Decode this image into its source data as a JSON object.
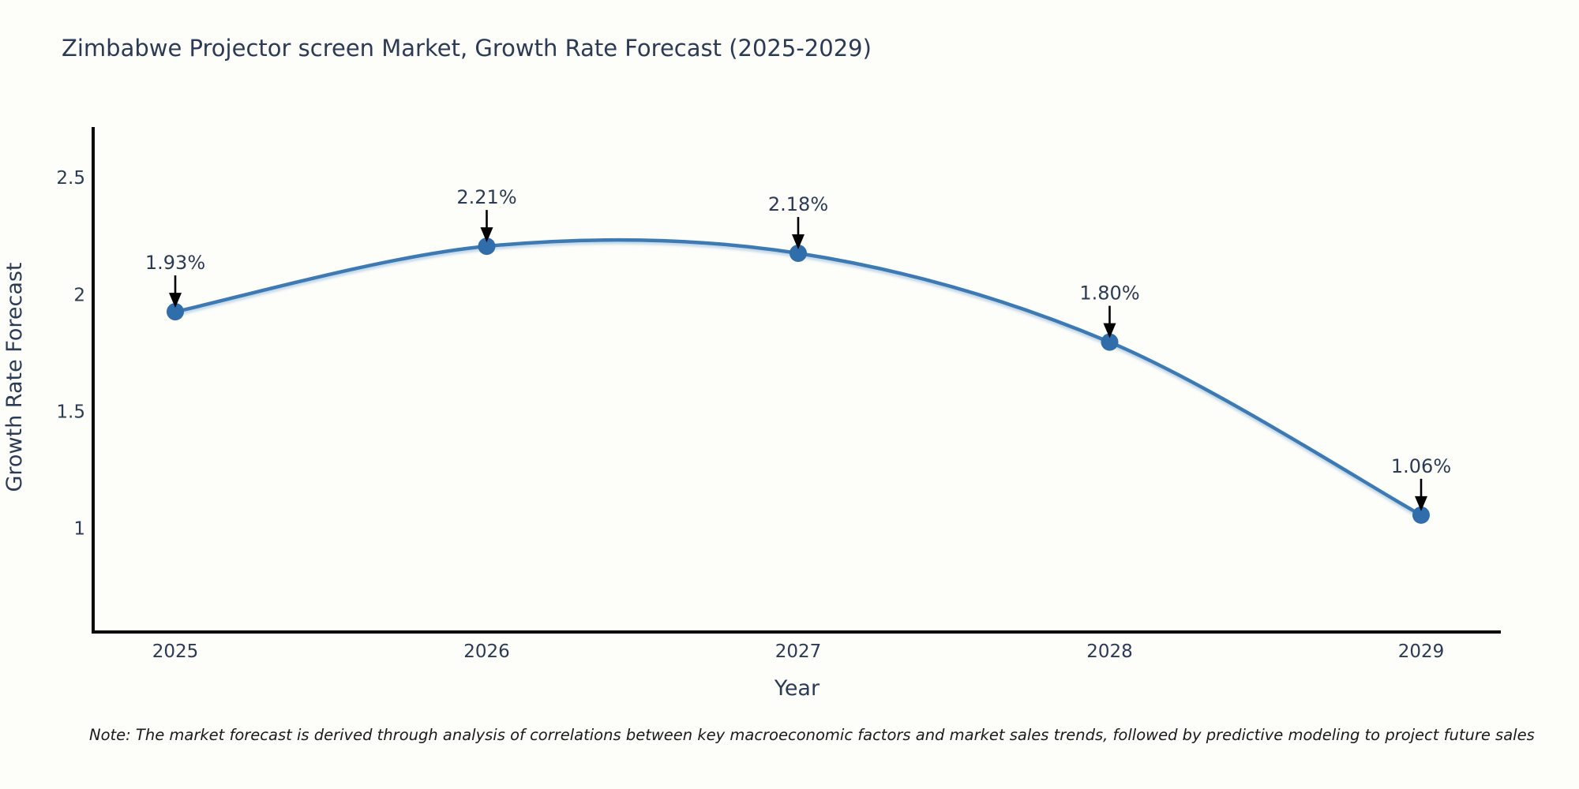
{
  "page": {
    "background": "#fdfdfa"
  },
  "chart_data": {
    "type": "line",
    "title": "Zimbabwe Projector screen Market, Growth Rate Forecast (2025-2029)",
    "xlabel": "Year",
    "ylabel": "Growth Rate Forecast",
    "categories": [
      "2025",
      "2026",
      "2027",
      "2028",
      "2029"
    ],
    "series": [
      {
        "name": "Growth Rate Forecast",
        "values": [
          1.93,
          2.21,
          2.18,
          1.8,
          1.06
        ]
      }
    ],
    "point_labels": [
      "1.93%",
      "2.21%",
      "2.18%",
      "1.80%",
      "1.06%"
    ],
    "ytick_labels": [
      "1",
      "1.5",
      "2",
      "2.5"
    ],
    "ytick_values": [
      1,
      1.5,
      2,
      2.5
    ],
    "ylim": [
      0.56,
      2.72
    ],
    "grid": false,
    "legend": "none",
    "marker": "circle",
    "annotation_style": "black-arrow-pointing-down-to-point",
    "colors": {
      "line": "#3e79b2",
      "line_shadow": "#a5c8e3",
      "marker": "#2f6eab",
      "axis": "#0a0a0a",
      "text": "#2b3a55",
      "annotation_arrow": "#000000",
      "note_text": "#1a1a1a",
      "background": "#fdfdfa"
    }
  },
  "note": "Note: The market forecast is derived through analysis of correlations between key macroeconomic factors and market sales trends, followed by predictive modeling to project future sales"
}
